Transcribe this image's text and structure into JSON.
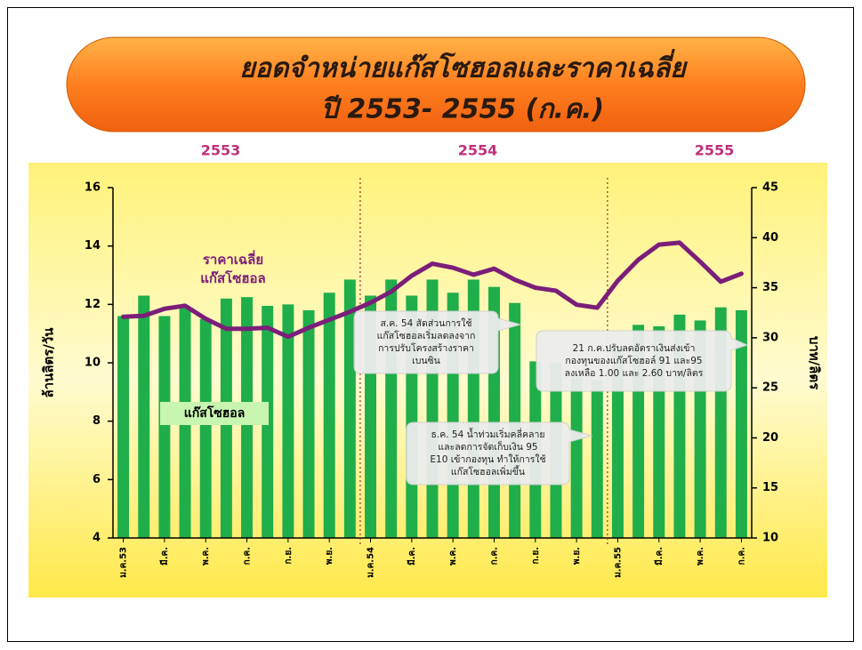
{
  "chart_data": {
    "type": "bar",
    "title": [
      "ยอดจำหน่ายแก๊สโซฮอลและราคาเฉลี่ย",
      "ปี 2553- 2555 (ก.ค.)"
    ],
    "year_labels": [
      "2553",
      "2554",
      "2555"
    ],
    "y_label": "ล้านลิตร/วัน",
    "y2_label": "บาท/ลิตร",
    "categories": [
      "ม.ค.53",
      null,
      "มี.ค.",
      null,
      "พ.ค.",
      null,
      "ก.ค.",
      null,
      "ก.ย.",
      null,
      "พ.ย.",
      null,
      "ม.ค.54",
      null,
      "มี.ค.",
      null,
      "พ.ค.",
      null,
      "ก.ค.",
      null,
      "ก.ย.",
      null,
      "พ.ย.",
      null,
      "ม.ค.55",
      null,
      "มี.ค.",
      null,
      "พ.ค.",
      null,
      "ก.ค."
    ],
    "series": [
      {
        "name": "แก๊สโซฮอล",
        "color": "#1fae4a",
        "axis": "y",
        "values": [
          11.6,
          12.3,
          11.6,
          11.9,
          11.5,
          12.2,
          12.25,
          11.95,
          12.0,
          11.8,
          12.4,
          12.85,
          12.3,
          12.85,
          12.3,
          12.85,
          12.4,
          12.85,
          12.6,
          12.05,
          10.05,
          10.0,
          9.5,
          9.4,
          10.5,
          11.3,
          11.25,
          11.65,
          11.45,
          11.9,
          11.8
        ]
      },
      {
        "name": "ราคาเฉลี่ย แก๊สโซฮอล",
        "color": "#7b1e7a",
        "axis": "y2",
        "values": [
          32.1,
          32.2,
          32.9,
          33.2,
          31.9,
          30.9,
          30.9,
          31.0,
          30.1,
          31.0,
          31.8,
          32.6,
          33.5,
          34.6,
          36.2,
          37.4,
          37.0,
          36.3,
          36.9,
          35.8,
          35.0,
          34.7,
          33.3,
          33.0,
          35.7,
          37.8,
          39.3,
          39.5,
          37.6,
          35.6,
          36.4
        ]
      }
    ],
    "ylim": [
      4,
      16
    ],
    "yticks": [
      4,
      6,
      8,
      10,
      12,
      14,
      16
    ],
    "y2lim": [
      10,
      45
    ],
    "y2ticks": [
      10,
      15,
      20,
      25,
      30,
      35,
      40,
      45
    ],
    "annotations": [
      [
        "ส.ค. 54 สัดส่วนการใช้",
        "แก๊สโซฮอลเริ่มลดลงจาก",
        "การปรับโครงสร้างราคา",
        "เบนซิน"
      ],
      [
        "ธ.ค. 54 น้ำท่วมเริ่มคลี่คลาย",
        "และลดการจัดเก็บเงิน 95",
        "E10 เข้ากองทุน ทำให้การใช้",
        "แก๊สโซฮอลเพิ่มขึ้น"
      ],
      [
        "21 ก.ค.ปรับลดอัตราเงินส่งเข้า",
        "กองทุนของแก๊สโซฮอล์ 91 และ95",
        "ลงเหลือ 1.00 และ 2.60 บาท/ลิตร"
      ]
    ]
  }
}
